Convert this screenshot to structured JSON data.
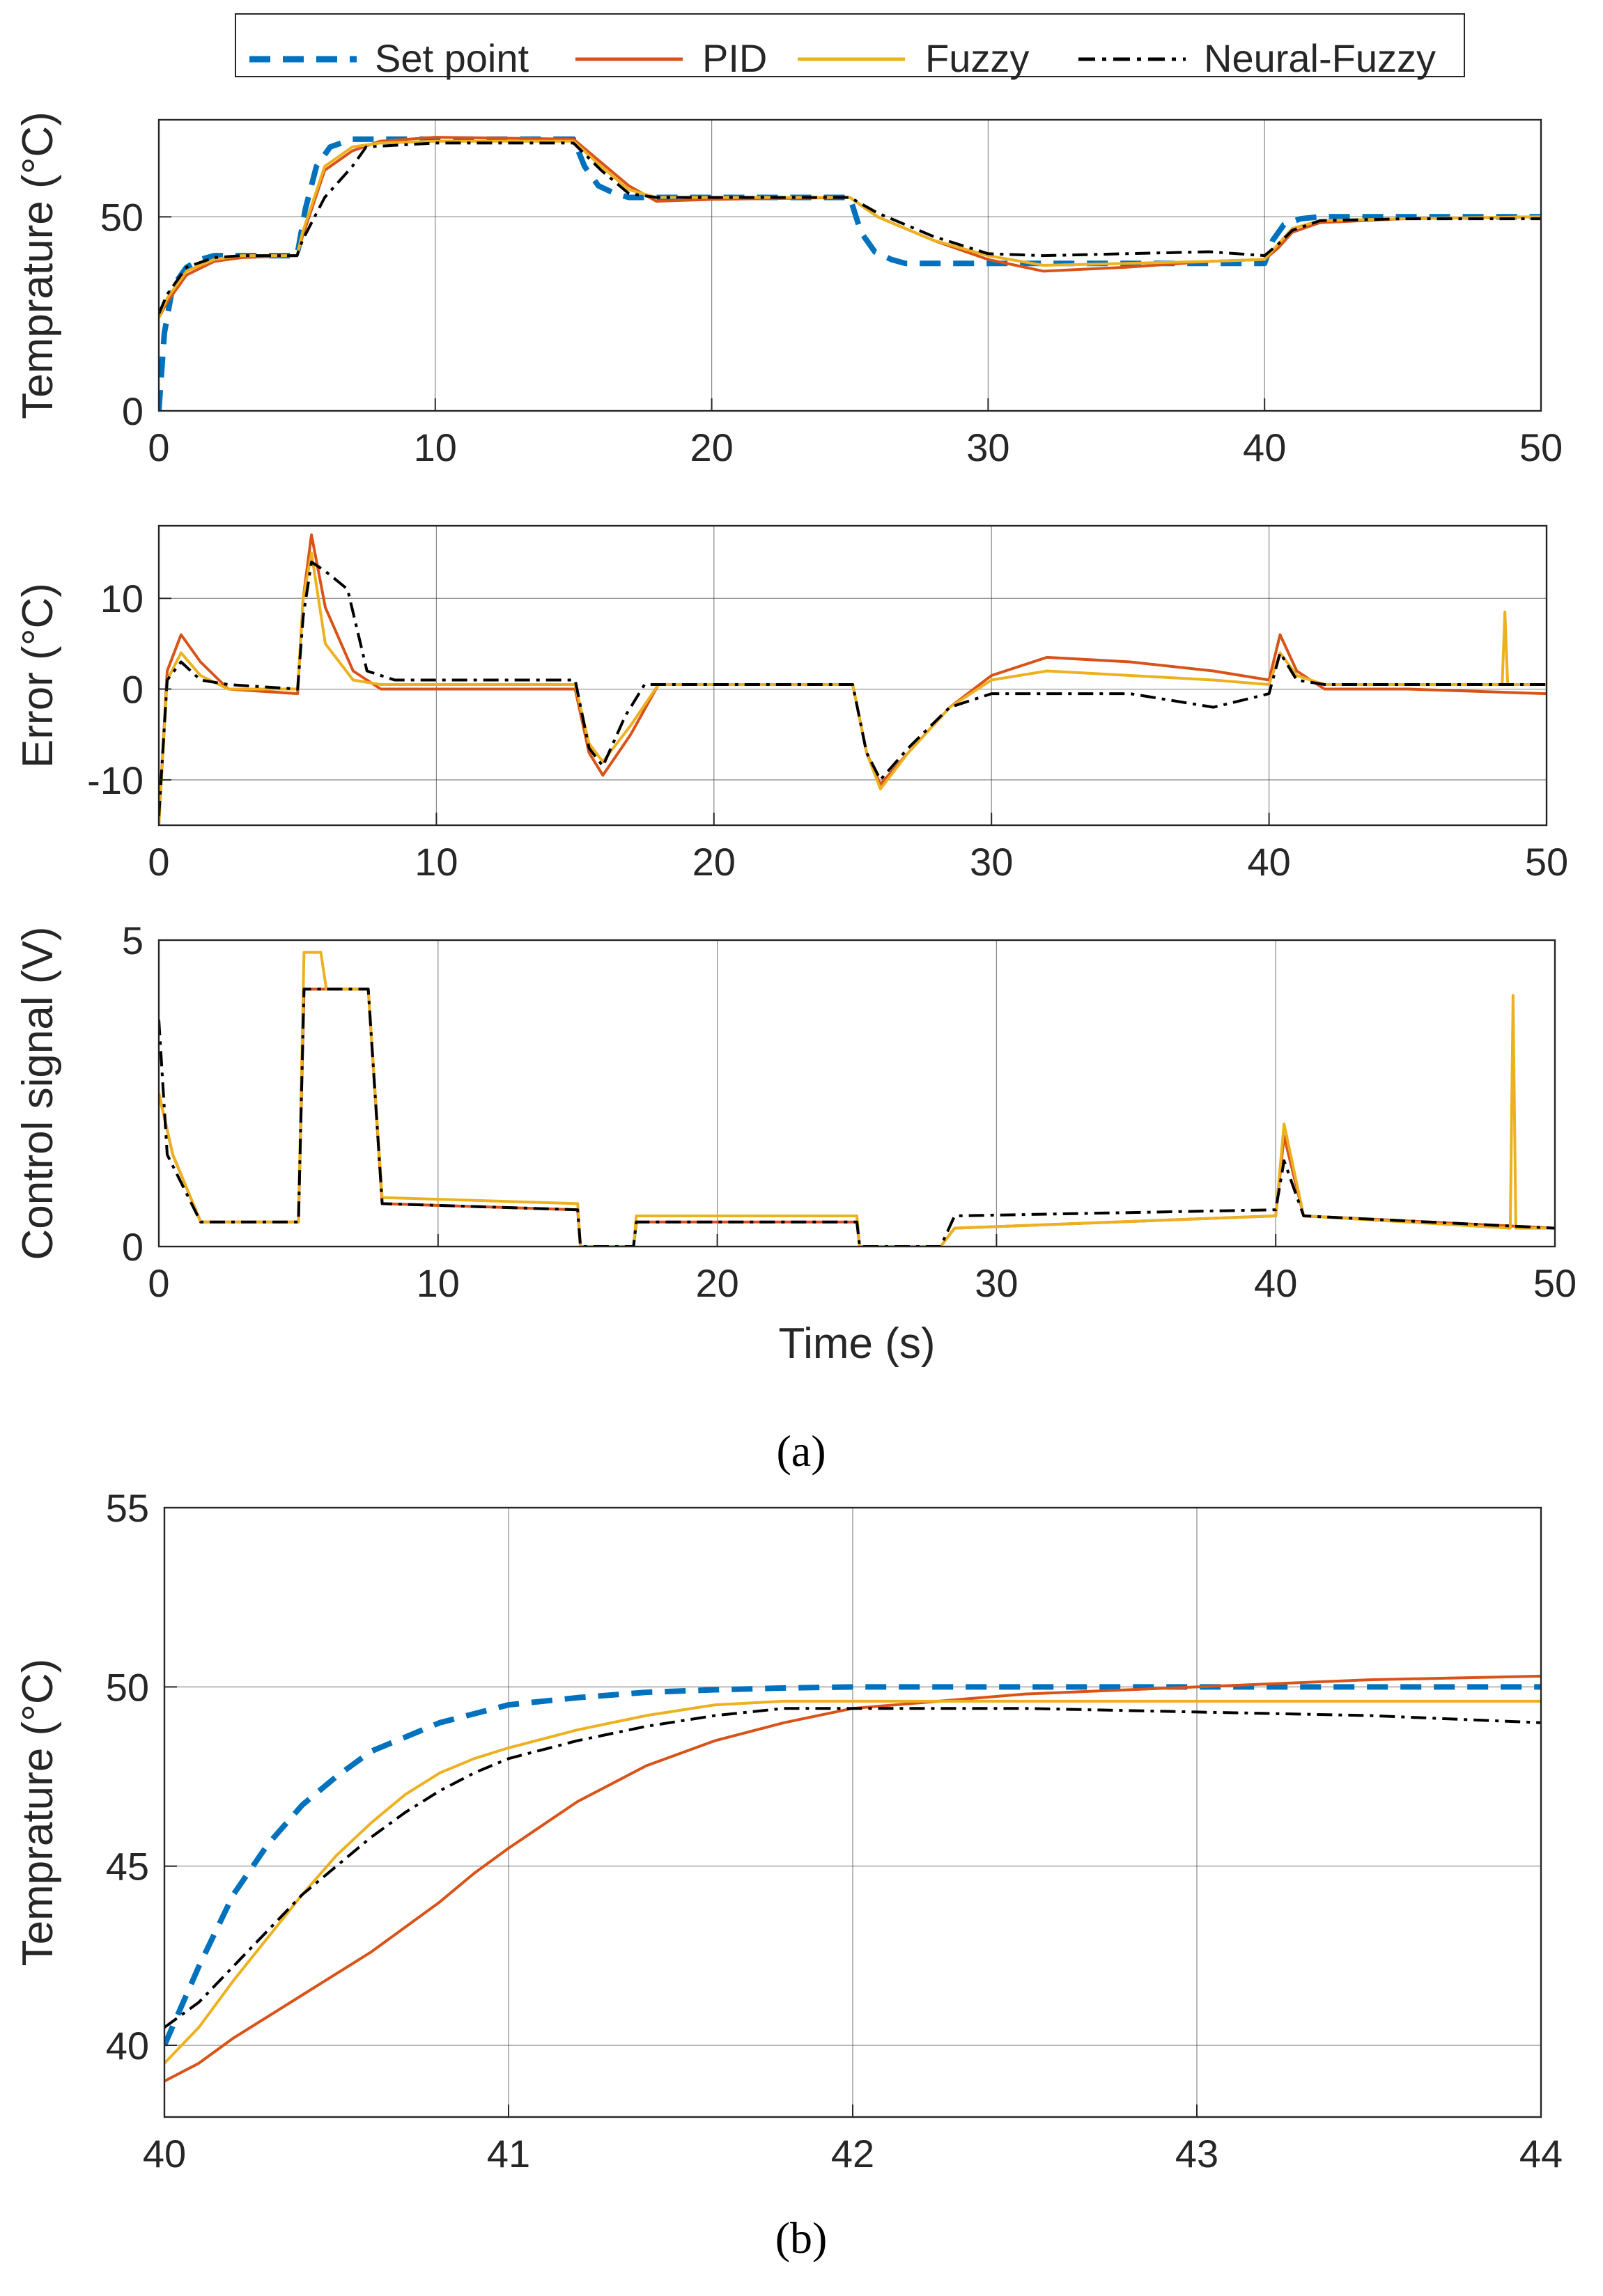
{
  "legend": {
    "entries": [
      {
        "label": "Set point",
        "color": "#0072BD",
        "style": "dashed"
      },
      {
        "label": "PID",
        "color": "#D95319",
        "style": "solid"
      },
      {
        "label": "Fuzzy",
        "color": "#EDB120",
        "style": "solid"
      },
      {
        "label": "Neural-Fuzzy",
        "color": "#000000",
        "style": "dashdot"
      }
    ]
  },
  "captions": {
    "a": "(a)",
    "b": "(b)"
  },
  "chart_data": [
    {
      "type": "line",
      "id": "temperature",
      "title": "",
      "xlabel": "",
      "ylabel": "Temprature (°C)",
      "xlim": [
        0,
        50
      ],
      "ylim": [
        0,
        75
      ],
      "xticks": [
        "0",
        "10",
        "20",
        "30",
        "40",
        "50"
      ],
      "yticks": [
        "0",
        "50"
      ],
      "grid": true,
      "series": [
        {
          "name": "Set point",
          "x": [
            0,
            0.2,
            0.5,
            1,
            1.5,
            2,
            5,
            5.3,
            5.7,
            6.2,
            7,
            15,
            15.4,
            15.9,
            16.5,
            17,
            25,
            25.4,
            25.9,
            26.5,
            27,
            40,
            40.3,
            40.7,
            41.3,
            42,
            50
          ],
          "y": [
            0,
            20,
            32,
            37,
            39,
            40,
            40,
            52,
            63,
            68,
            70,
            70,
            63,
            58,
            56,
            55,
            55,
            46,
            41,
            39,
            38,
            38,
            44,
            48,
            49.5,
            50,
            50
          ]
        },
        {
          "name": "PID",
          "x": [
            0,
            0.3,
            1,
            2,
            3,
            5,
            5.2,
            6,
            7,
            8,
            10,
            15,
            16,
            17,
            18,
            20,
            25,
            26,
            28,
            30,
            32,
            35,
            38,
            40,
            40.5,
            41,
            42,
            45,
            50
          ],
          "y": [
            24,
            28,
            35,
            38.5,
            39.5,
            40,
            45,
            62,
            67,
            69.5,
            70.5,
            70,
            64,
            58,
            54,
            54.5,
            55,
            50,
            44,
            39,
            36,
            37,
            38.5,
            39,
            42,
            46,
            48.5,
            49.5,
            50
          ]
        },
        {
          "name": "Fuzzy",
          "x": [
            0,
            0.3,
            1,
            2,
            3,
            5,
            5.2,
            6,
            7,
            8,
            10,
            15,
            16,
            17,
            18,
            20,
            25,
            26,
            28,
            30,
            32,
            35,
            38,
            40,
            40.5,
            41,
            42,
            45,
            50
          ],
          "y": [
            24,
            29,
            36,
            39,
            40,
            40,
            46,
            63,
            68,
            69,
            69.5,
            69.5,
            63,
            57,
            55,
            55,
            55,
            50,
            44,
            40,
            37.5,
            38,
            38.5,
            39,
            43,
            47,
            49,
            49.5,
            50
          ]
        },
        {
          "name": "Neural-Fuzzy",
          "x": [
            0,
            0.3,
            1,
            2,
            3,
            5,
            5.2,
            6,
            7,
            7.5,
            10,
            15,
            16,
            17,
            18,
            20,
            25,
            26,
            28,
            30,
            32,
            35,
            38,
            40,
            40.5,
            41,
            42,
            45,
            50
          ],
          "y": [
            25,
            30,
            37,
            39.5,
            40,
            40,
            44,
            55,
            63,
            68,
            69,
            69,
            62,
            56,
            55,
            55,
            55,
            51,
            45,
            40.5,
            40,
            40.5,
            41,
            40,
            43,
            46.5,
            49,
            49.5,
            49.5
          ]
        }
      ]
    },
    {
      "type": "line",
      "id": "error",
      "title": "",
      "xlabel": "",
      "ylabel": "Error (°C)",
      "xlim": [
        0,
        50
      ],
      "ylim": [
        -15,
        18
      ],
      "xticks": [
        "0",
        "10",
        "20",
        "30",
        "40",
        "50"
      ],
      "yticks": [
        "-10",
        "0",
        "10"
      ],
      "grid": true,
      "series": [
        {
          "name": "PID",
          "x": [
            0,
            0.3,
            0.8,
            1.5,
            2.5,
            5,
            5.2,
            5.5,
            6,
            7,
            8,
            15,
            15.5,
            16,
            17,
            18,
            25,
            25.5,
            26,
            27,
            28.5,
            30,
            32,
            35,
            38,
            40,
            40.4,
            41,
            42,
            45,
            50
          ],
          "y": [
            -15,
            2,
            6,
            3,
            0,
            -0.5,
            10,
            17,
            9,
            2,
            0,
            0,
            -7,
            -9.5,
            -5,
            0.5,
            0.5,
            -7,
            -10.5,
            -7,
            -2,
            1.5,
            3.5,
            3,
            2,
            1,
            6,
            2,
            0,
            0,
            -0.5
          ]
        },
        {
          "name": "Fuzzy",
          "x": [
            0,
            0.3,
            0.8,
            1.5,
            2.5,
            5,
            5.2,
            5.5,
            6,
            7,
            8,
            15,
            15.5,
            16,
            17,
            18,
            25,
            25.5,
            26,
            27,
            28.5,
            30,
            32,
            35,
            38,
            40,
            40.4,
            41,
            42,
            45,
            48.4,
            48.5,
            48.6,
            50
          ],
          "y": [
            -15,
            1,
            4,
            1.5,
            0,
            0,
            10,
            15,
            5,
            1,
            0.5,
            0.5,
            -6,
            -8,
            -4,
            0.5,
            0.5,
            -7,
            -11,
            -7,
            -2,
            1,
            2,
            1.5,
            1,
            0.5,
            4,
            1.5,
            0.5,
            0.5,
            0.5,
            8.5,
            0.5,
            0.5
          ]
        },
        {
          "name": "Neural-Fuzzy",
          "x": [
            0,
            0.3,
            0.8,
            1.5,
            2.5,
            5,
            5.2,
            5.5,
            6,
            6.8,
            7.5,
            8.5,
            15,
            15.5,
            16,
            16.8,
            17.5,
            25,
            25.5,
            26,
            27,
            28.5,
            30,
            32,
            35,
            38,
            40,
            40.4,
            41,
            42,
            45,
            50
          ],
          "y": [
            -14,
            1,
            3,
            1,
            0.5,
            0,
            8,
            14,
            13,
            11,
            2,
            1,
            1,
            -6.5,
            -8.5,
            -3,
            0.5,
            0.5,
            -7,
            -10,
            -6.5,
            -2,
            -0.5,
            -0.5,
            -0.5,
            -2,
            -0.5,
            4,
            1,
            0.5,
            0.5,
            0.5
          ]
        }
      ]
    },
    {
      "type": "line",
      "id": "control",
      "title": "",
      "xlabel": "Time (s)",
      "ylabel": "Control signal (V)",
      "xlim": [
        0,
        50
      ],
      "ylim": [
        0,
        5
      ],
      "xticks": [
        "0",
        "10",
        "20",
        "30",
        "40",
        "50"
      ],
      "yticks": [
        "0",
        "5"
      ],
      "grid": true,
      "series": [
        {
          "name": "PID",
          "x": [
            0,
            0.5,
            1.5,
            5,
            5.2,
            7.5,
            8,
            15,
            15.1,
            17,
            17.1,
            25,
            25.1,
            28,
            28.5,
            40,
            40.3,
            41,
            50
          ],
          "y": [
            2.5,
            1.5,
            0.4,
            0.4,
            4.2,
            4.2,
            0.7,
            0.6,
            0,
            0,
            0.4,
            0.4,
            0,
            0,
            0.3,
            0.5,
            1.8,
            0.5,
            0.3
          ]
        },
        {
          "name": "Fuzzy",
          "x": [
            0,
            0.5,
            1.5,
            5,
            5.2,
            5.8,
            6,
            7.5,
            8,
            15,
            15.1,
            17,
            17.1,
            25,
            25.1,
            28,
            28.5,
            40,
            40.3,
            41,
            48.4,
            48.5,
            48.6,
            50
          ],
          "y": [
            2.5,
            1.5,
            0.4,
            0.4,
            4.8,
            4.8,
            4.2,
            4.2,
            0.8,
            0.7,
            0,
            0,
            0.5,
            0.5,
            0,
            0,
            0.3,
            0.5,
            2,
            0.5,
            0.3,
            4.1,
            0.3,
            0.3
          ]
        },
        {
          "name": "Neural-Fuzzy",
          "x": [
            0,
            0.3,
            1.5,
            5,
            5.2,
            7.5,
            8,
            15,
            15.1,
            17,
            17.1,
            25,
            25.1,
            28,
            28.5,
            40,
            40.3,
            41,
            50
          ],
          "y": [
            3.7,
            1.5,
            0.4,
            0.4,
            4.2,
            4.2,
            0.7,
            0.6,
            0,
            0,
            0.4,
            0.4,
            0,
            0,
            0.5,
            0.6,
            1.4,
            0.5,
            0.3
          ]
        }
      ]
    },
    {
      "type": "line",
      "id": "zoom",
      "title": "",
      "xlabel": "",
      "ylabel": "Temprature (°C)",
      "xlim": [
        40,
        44
      ],
      "ylim": [
        38,
        55
      ],
      "xticks": [
        "40",
        "41",
        "42",
        "43",
        "44"
      ],
      "yticks": [
        "40",
        "45",
        "50",
        "55"
      ],
      "grid": true,
      "series": [
        {
          "name": "Set point",
          "x": [
            40,
            40.1,
            40.2,
            40.3,
            40.4,
            40.5,
            40.6,
            40.7,
            40.8,
            41,
            41.2,
            41.4,
            41.6,
            41.8,
            42,
            44
          ],
          "y": [
            40,
            42.2,
            44.2,
            45.6,
            46.7,
            47.5,
            48.2,
            48.6,
            49,
            49.5,
            49.7,
            49.85,
            49.92,
            49.97,
            50,
            50
          ]
        },
        {
          "name": "PID",
          "x": [
            40,
            40.1,
            40.2,
            40.3,
            40.4,
            40.5,
            40.6,
            40.7,
            40.8,
            40.9,
            41,
            41.2,
            41.4,
            41.6,
            41.8,
            42,
            42.5,
            43,
            43.5,
            44
          ],
          "y": [
            39,
            39.5,
            40.2,
            40.8,
            41.4,
            42,
            42.6,
            43.3,
            44,
            44.8,
            45.5,
            46.8,
            47.8,
            48.5,
            49,
            49.4,
            49.8,
            50,
            50.2,
            50.3
          ]
        },
        {
          "name": "Fuzzy",
          "x": [
            40,
            40.1,
            40.2,
            40.3,
            40.4,
            40.5,
            40.6,
            40.7,
            40.8,
            40.9,
            41,
            41.2,
            41.4,
            41.6,
            41.8,
            42,
            42.5,
            43,
            43.5,
            44
          ],
          "y": [
            39.5,
            40.5,
            41.8,
            43,
            44.2,
            45.3,
            46.2,
            47,
            47.6,
            48,
            48.3,
            48.8,
            49.2,
            49.5,
            49.6,
            49.6,
            49.6,
            49.6,
            49.6,
            49.6
          ]
        },
        {
          "name": "Neural-Fuzzy",
          "x": [
            40,
            40.1,
            40.2,
            40.3,
            40.4,
            40.5,
            40.6,
            40.7,
            40.8,
            40.9,
            41,
            41.2,
            41.4,
            41.6,
            41.8,
            42,
            42.5,
            43,
            43.5,
            44
          ],
          "y": [
            40.5,
            41.2,
            42.2,
            43.2,
            44.2,
            45,
            45.8,
            46.5,
            47.1,
            47.6,
            48,
            48.5,
            48.9,
            49.2,
            49.4,
            49.4,
            49.4,
            49.3,
            49.2,
            49
          ]
        }
      ]
    }
  ]
}
